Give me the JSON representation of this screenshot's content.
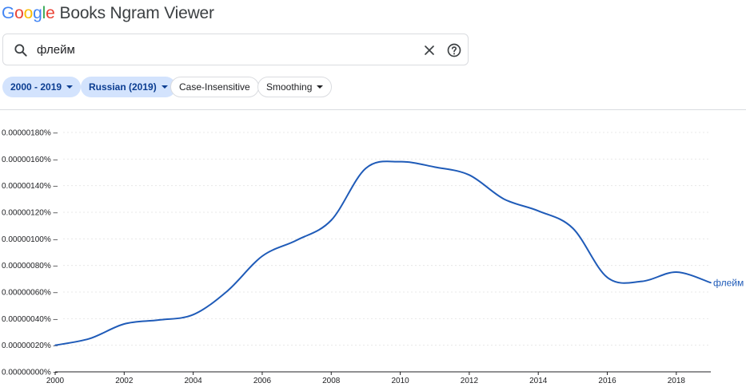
{
  "header": {
    "logo_letters": [
      "G",
      "o",
      "o",
      "g",
      "l",
      "e"
    ],
    "app_name": "Books Ngram Viewer"
  },
  "search": {
    "value": "флейм",
    "icons": {
      "search": "search-icon",
      "clear": "close-icon",
      "help": "help-circle-icon"
    }
  },
  "filters": {
    "date_range": "2000 - 2019",
    "corpus": "Russian (2019)",
    "case": "Case-Insensitive",
    "smoothing": "Smoothing"
  },
  "colors": {
    "series": "#1f5bb8",
    "chip_fill": "#d3e3fd",
    "chip_text": "#0b3d91"
  },
  "chart_data": {
    "type": "line",
    "title": "",
    "xlabel": "",
    "ylabel": "",
    "xlim": [
      2000,
      2019
    ],
    "ylim": [
      0,
      1.8e-06
    ],
    "y_ticks": [
      "0.00000180%",
      "0.00000160%",
      "0.00000140%",
      "0.00000120%",
      "0.00000100%",
      "0.00000080%",
      "0.00000060%",
      "0.00000040%",
      "0.00000020%",
      "0.00000000%"
    ],
    "x_ticks": [
      "2000",
      "2002",
      "2004",
      "2006",
      "2008",
      "2010",
      "2012",
      "2014",
      "2016",
      "2018"
    ],
    "grid": true,
    "series": [
      {
        "name": "флейм",
        "x": [
          2000,
          2001,
          2002,
          2003,
          2004,
          2005,
          2006,
          2007,
          2008,
          2009,
          2010,
          2011,
          2012,
          2013,
          2014,
          2015,
          2016,
          2017,
          2018,
          2019
        ],
        "values": [
          2e-07,
          2.5e-07,
          3.6e-07,
          3.9e-07,
          4.3e-07,
          6.1e-07,
          8.7e-07,
          9.9e-07,
          1.14e-06,
          1.53e-06,
          1.58e-06,
          1.54e-06,
          1.48e-06,
          1.3e-06,
          1.21e-06,
          1.08e-06,
          7.1e-07,
          6.8e-07,
          7.5e-07,
          6.7e-07
        ]
      }
    ]
  }
}
